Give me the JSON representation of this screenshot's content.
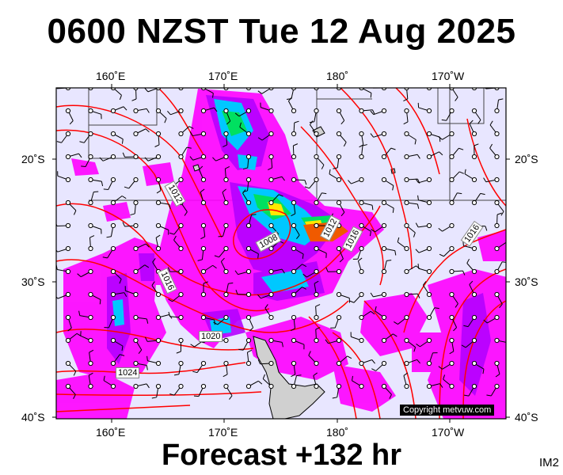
{
  "title": "0600 NZST Tue 12 Aug 2025",
  "footer": "Forecast +132 hr",
  "tag": "IM2",
  "copyright": "Copyright metvuw.com",
  "top_lon_labels": [
    "160˚E",
    "170˚E",
    "180˚",
    "170˚W"
  ],
  "bottom_lon_labels": [
    "160˚E",
    "170˚E",
    "180˚",
    "170˚W"
  ],
  "lat_labels": [
    "20˚S",
    "30˚S",
    "40˚S"
  ],
  "isobar_labels": [
    "1012",
    "1008",
    "1012",
    "1016",
    "1016",
    "1016",
    "1020",
    "1024"
  ],
  "colors": {
    "ocean": "#e8e6ff",
    "rain_light": "#ff00ff",
    "rain_medium": "#b400ff",
    "rain_heavy": "#00c8ff",
    "rain_very_heavy": "#00e060",
    "rain_extreme": "#f05a00",
    "isobar": "#ff0000",
    "land": "#d0d0d0"
  }
}
